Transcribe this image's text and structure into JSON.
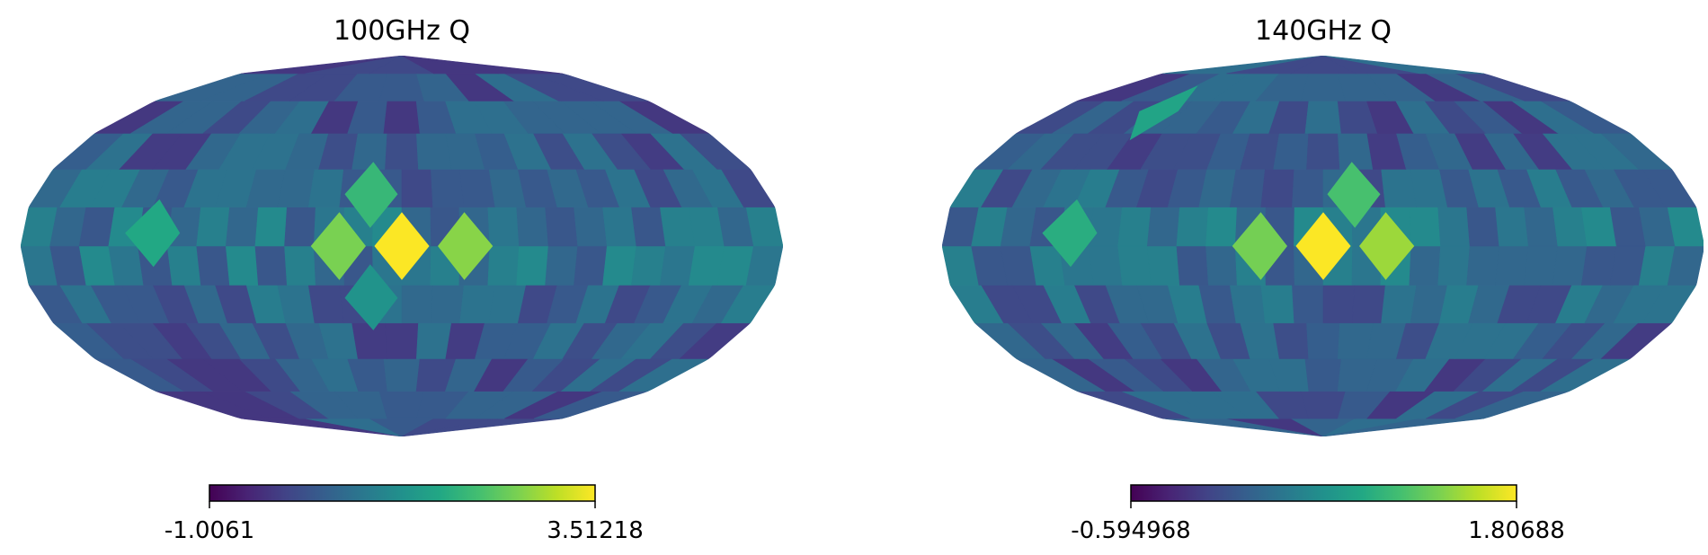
{
  "chart_data": [
    {
      "type": "heatmap",
      "projection": "mollweide",
      "title": "100GHz Q",
      "colormap": "viridis",
      "colorbar": {
        "min_label": "-1.0061",
        "max_label": "3.51218",
        "min": -1.0061,
        "max": 3.51218
      },
      "bright_spots": [
        {
          "lon": 0,
          "lat": 0,
          "value": 3.5
        },
        {
          "lon": 30,
          "lat": 0,
          "value": 2.6
        },
        {
          "lon": -30,
          "lat": 0,
          "value": 2.7
        },
        {
          "lon": 15,
          "lat": 20,
          "value": 2.0
        },
        {
          "lon": 118,
          "lat": 5,
          "value": 1.7
        },
        {
          "lon": 15,
          "lat": -20,
          "value": 1.3
        }
      ]
    },
    {
      "type": "heatmap",
      "projection": "mollweide",
      "title": "140GHz Q",
      "colormap": "viridis",
      "colorbar": {
        "min_label": "-0.594968",
        "max_label": "1.80688",
        "min": -0.594968,
        "max": 1.80688
      },
      "bright_spots": [
        {
          "lon": 0,
          "lat": 0,
          "value": 1.8
        },
        {
          "lon": -30,
          "lat": 0,
          "value": 1.45
        },
        {
          "lon": 30,
          "lat": 0,
          "value": 1.3
        },
        {
          "lon": -15,
          "lat": 20,
          "value": 1.1
        },
        {
          "lon": 120,
          "lat": 5,
          "value": 0.9
        },
        {
          "lon": 110,
          "lat": 55,
          "value": 0.8
        }
      ]
    }
  ]
}
